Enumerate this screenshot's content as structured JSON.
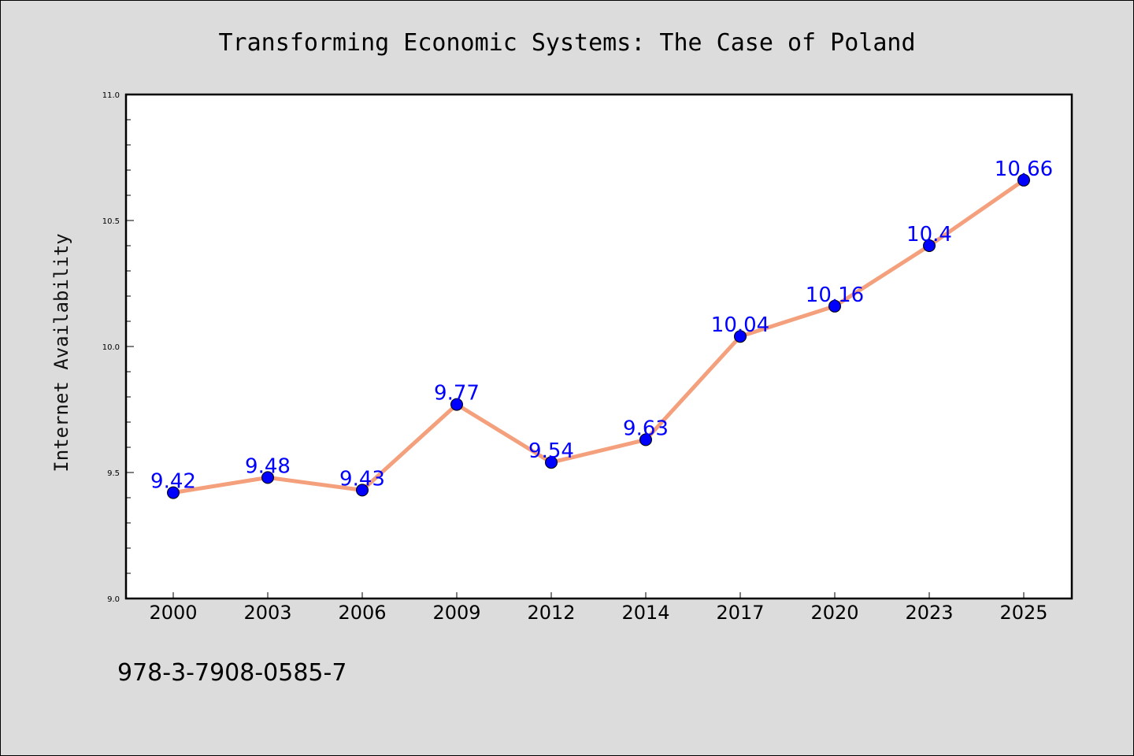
{
  "chart_data": {
    "type": "line",
    "title": "Transforming Economic Systems: The Case of Poland",
    "xlabel": "",
    "ylabel": "Internet Availability",
    "categories": [
      "2000",
      "2003",
      "2006",
      "2009",
      "2012",
      "2014",
      "2017",
      "2020",
      "2023",
      "2025"
    ],
    "series": [
      {
        "values": [
          9.42,
          9.48,
          9.43,
          9.77,
          9.54,
          9.63,
          10.04,
          10.16,
          10.4,
          10.66
        ],
        "labels": [
          "9.42",
          "9.48",
          "9.43",
          "9.77",
          "9.54",
          "9.63",
          "10.04",
          "10.16",
          "10.4",
          "10.66"
        ],
        "line_color": "#f4a07c",
        "marker_color": "#0000ff"
      }
    ],
    "ylim": [
      9.0,
      11.0
    ],
    "yticks": [
      "9.0",
      "9.5",
      "10.0",
      "10.5",
      "11.0"
    ],
    "grid": false,
    "background": "#dcdcdc",
    "plot_background": "#ffffff"
  },
  "footer": {
    "isbn": "978-3-7908-0585-7"
  }
}
